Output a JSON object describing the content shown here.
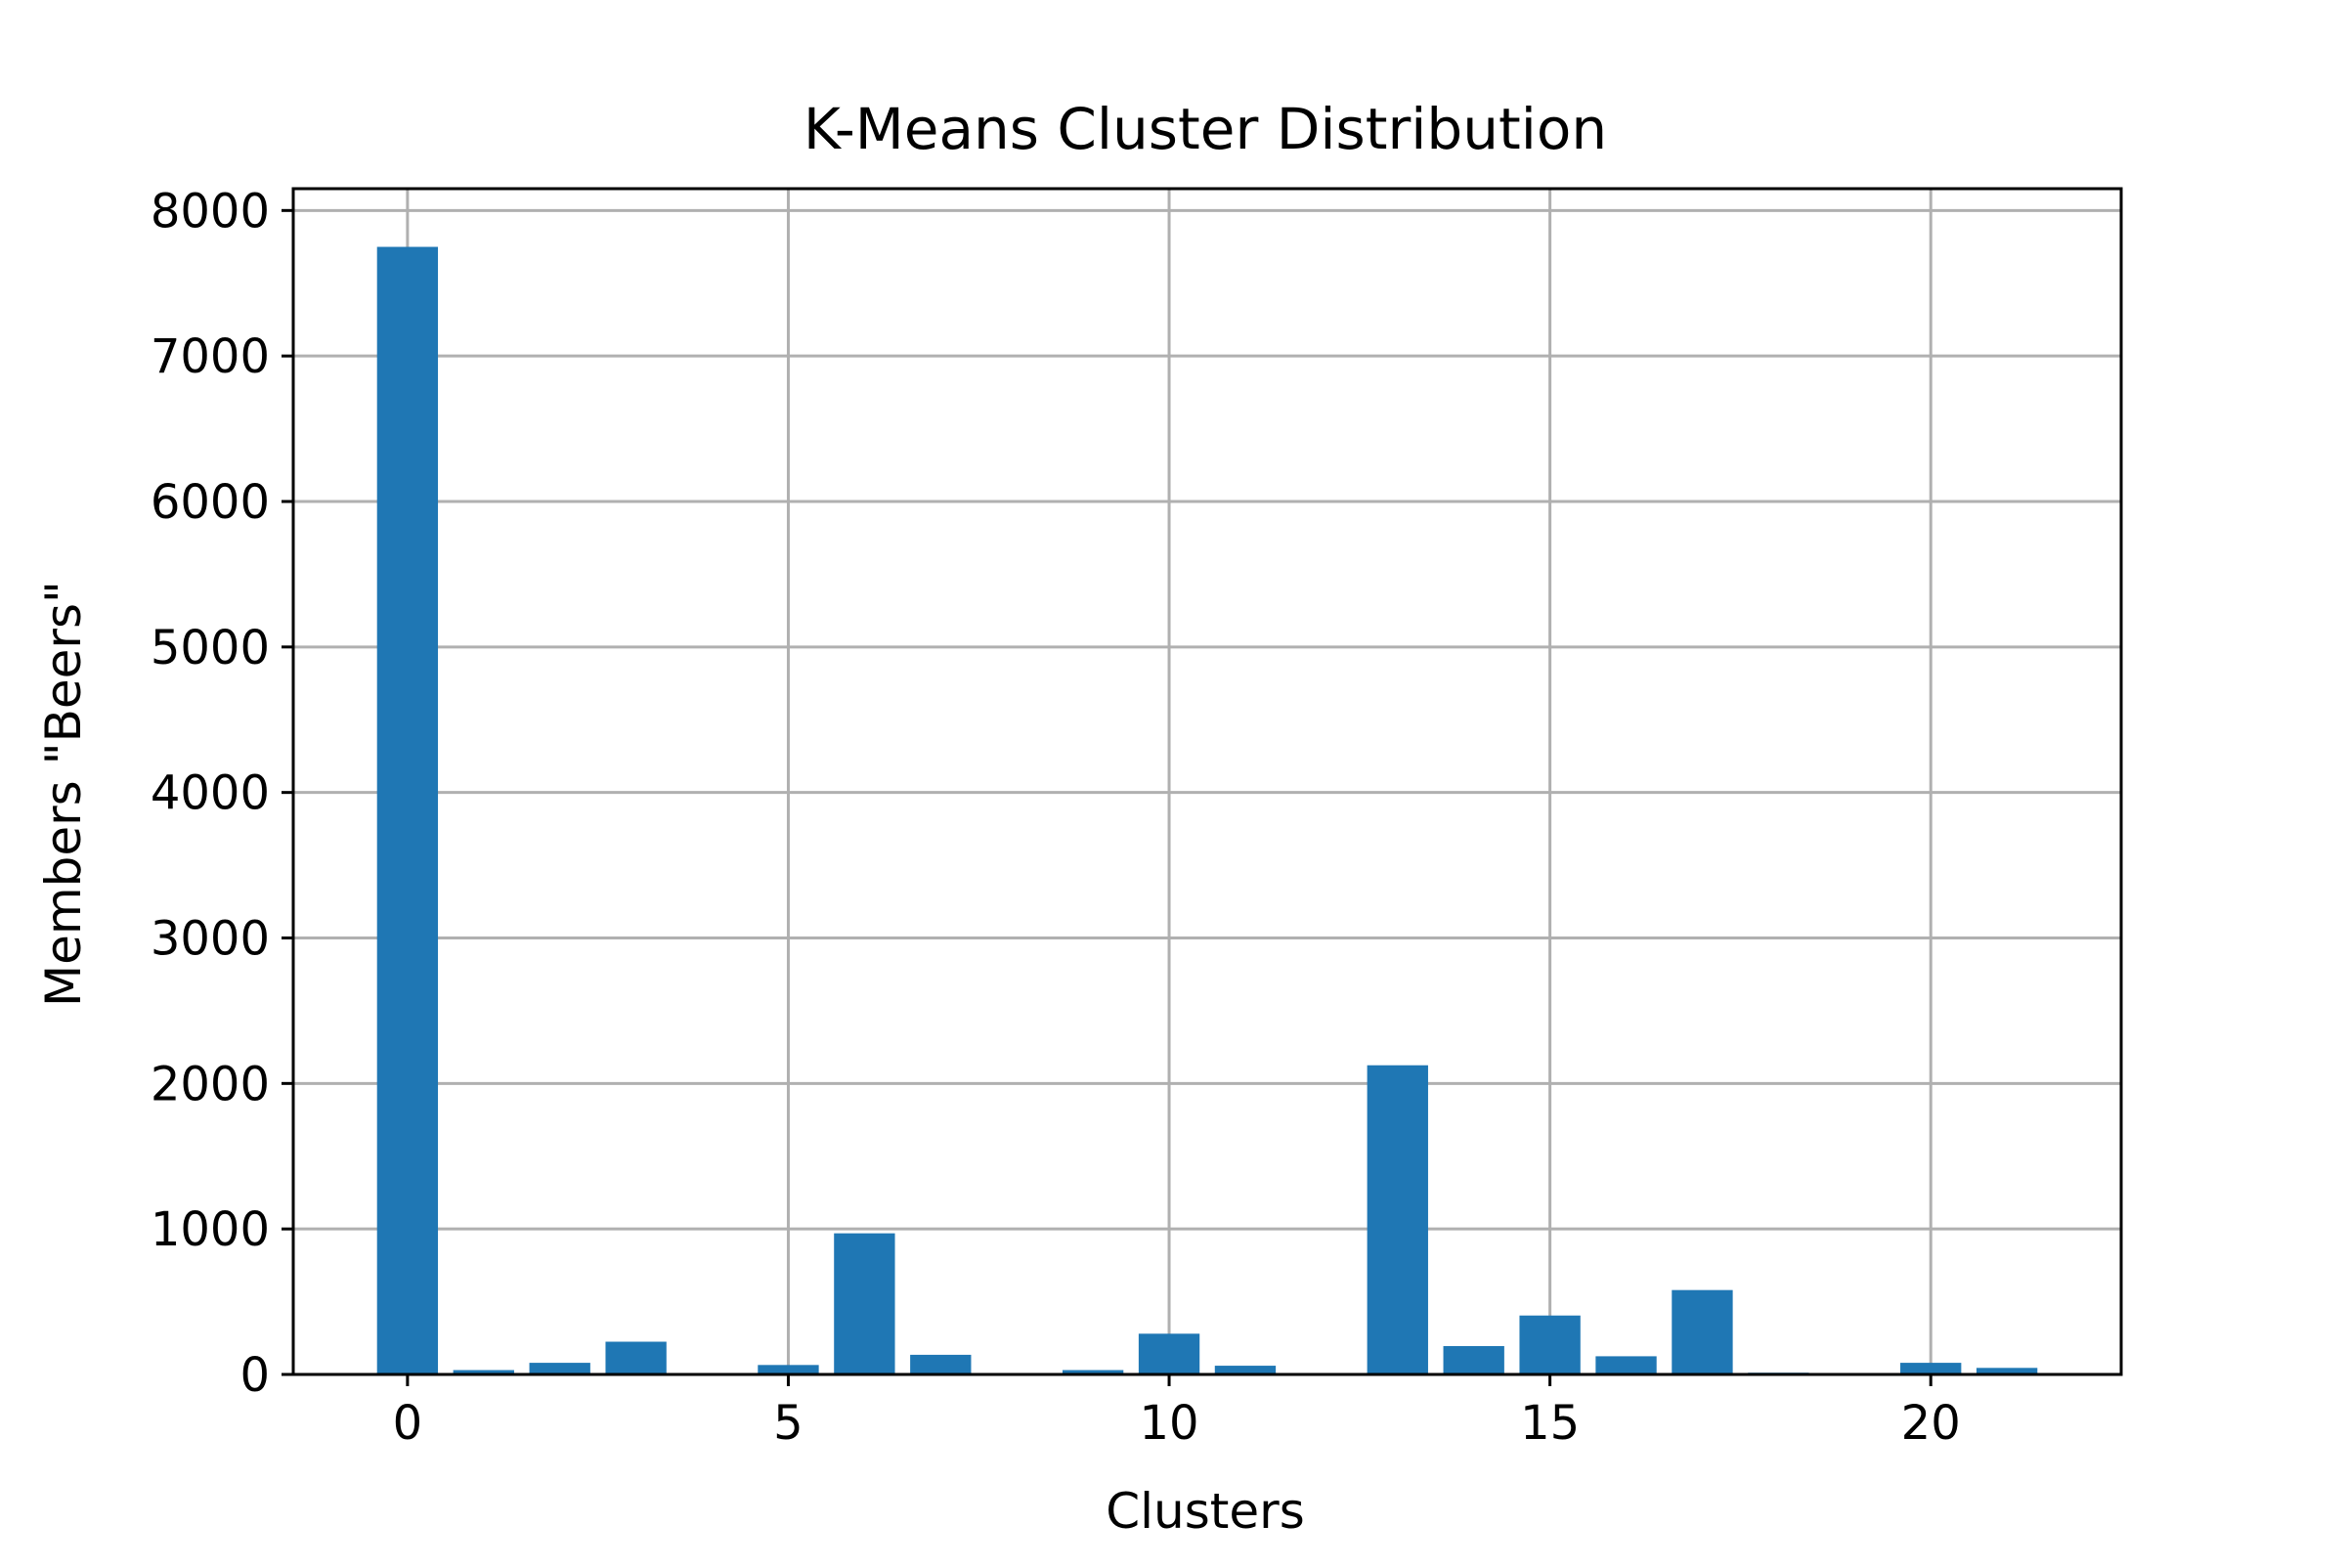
{
  "chart_data": {
    "type": "bar",
    "title": "K-Means Cluster Distribution",
    "xlabel": "Clusters",
    "ylabel": "Members \"Beers\"",
    "categories": [
      0,
      1,
      2,
      3,
      4,
      5,
      6,
      7,
      8,
      9,
      10,
      11,
      12,
      13,
      14,
      15,
      16,
      17,
      18,
      19,
      20,
      21
    ],
    "values": [
      7750,
      30,
      80,
      225,
      0,
      65,
      970,
      135,
      0,
      30,
      280,
      60,
      0,
      2125,
      195,
      405,
      125,
      580,
      12,
      0,
      80,
      45
    ],
    "xlim": [
      -1.5,
      22.5
    ],
    "ylim": [
      0,
      8150
    ],
    "xticks": [
      0,
      5,
      10,
      15,
      20
    ],
    "xtick_labels": [
      "0",
      "5",
      "10",
      "15",
      "20"
    ],
    "yticks": [
      0,
      1000,
      2000,
      3000,
      4000,
      5000,
      6000,
      7000,
      8000
    ],
    "ytick_labels": [
      "0",
      "1000",
      "2000",
      "3000",
      "4000",
      "5000",
      "6000",
      "7000",
      "8000"
    ],
    "grid": true,
    "bar_color": "#1f77b4",
    "grid_color": "#b0b0b0",
    "axis_color": "#000000"
  }
}
